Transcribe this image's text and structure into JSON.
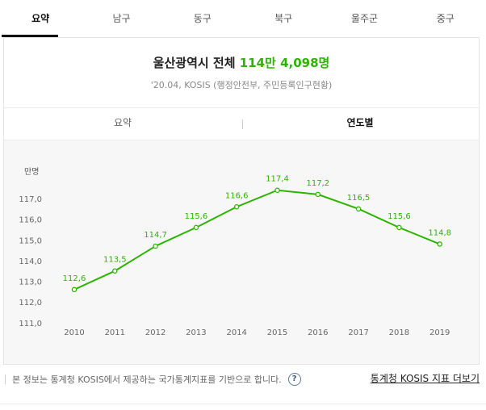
{
  "tabs": [
    {
      "label": "요약",
      "active": true
    },
    {
      "label": "남구",
      "active": false
    },
    {
      "label": "동구",
      "active": false
    },
    {
      "label": "북구",
      "active": false
    },
    {
      "label": "울주군",
      "active": false
    },
    {
      "label": "중구",
      "active": false
    }
  ],
  "headline": {
    "title": "울산광역시 전체",
    "value": "114만 4,098명"
  },
  "source": "'20.04, KOSIS (행정안전부, 주민등록인구현황)",
  "subtabs": [
    {
      "label": "요약",
      "active": false
    },
    {
      "label": "연도별",
      "active": true
    }
  ],
  "colors": {
    "accent": "#2db400",
    "text": "#333333",
    "chart_bg": "#f7f7f7"
  },
  "chart_data": {
    "type": "line",
    "title": "",
    "xlabel": "",
    "ylabel": "만명",
    "x": [
      "2010",
      "2011",
      "2012",
      "2013",
      "2014",
      "2015",
      "2016",
      "2017",
      "2018",
      "2019"
    ],
    "series": [
      {
        "values": [
          112.6,
          113.5,
          114.7,
          115.6,
          116.6,
          117.4,
          117.2,
          116.5,
          115.6,
          114.8
        ]
      }
    ],
    "value_labels": [
      "112,6",
      "113,5",
      "114,7",
      "115,6",
      "116,6",
      "117,4",
      "117,2",
      "116,5",
      "115,6",
      "114,8"
    ],
    "y_ticks": [
      "111,0",
      "112,0",
      "113,0",
      "114,0",
      "115,0",
      "116,0",
      "117,0"
    ],
    "ylim": [
      111.0,
      117.0
    ],
    "grid": false,
    "legend": "none"
  },
  "footer": {
    "note": "본 정보는 통계청 KOSIS에서 제공하는 국가통계지표를 기반으로 합니다.",
    "help_icon": "question-circle-icon",
    "help_glyph": "?",
    "link": "통계청 KOSIS 지표 더보기"
  }
}
